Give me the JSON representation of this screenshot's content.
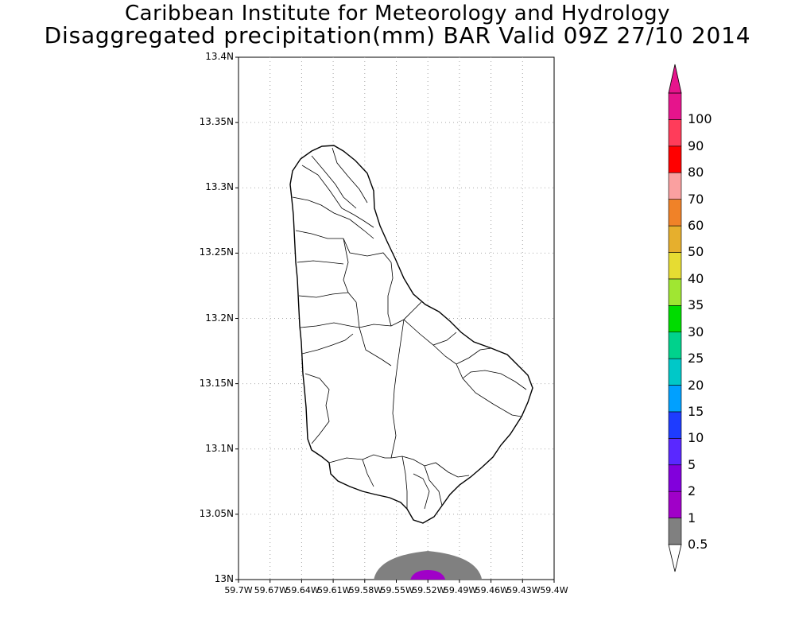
{
  "title": {
    "line1": "Caribbean Institute for Meteorology and Hydrology",
    "line2": "Disaggregated precipitation(mm) BAR Valid 09Z 27/10 2014"
  },
  "map": {
    "region": "Barbados",
    "lat_labels": [
      "13N",
      "13.05N",
      "13.1N",
      "13.15N",
      "13.2N",
      "13.25N",
      "13.3N",
      "13.35N",
      "13.4N"
    ],
    "lon_labels": [
      "59.7W",
      "59.67W",
      "59.64W",
      "59.61W",
      "59.58W",
      "59.55W",
      "59.52W",
      "59.49W",
      "59.46W",
      "59.43W",
      "59.4W"
    ],
    "lat_range": [
      13.0,
      13.4
    ],
    "lon_range": [
      -59.7,
      -59.4
    ],
    "grid": "dotted",
    "precipitation_areas": [
      {
        "class": "0.5-1",
        "color": "#808080",
        "center_lon": -59.52,
        "center_lat": 13.0
      },
      {
        "class": "1-2",
        "color": "#a000c8",
        "center_lon": -59.52,
        "center_lat": 13.0
      }
    ]
  },
  "colorbar": {
    "labels": [
      "0.5",
      "1",
      "2",
      "5",
      "10",
      "15",
      "20",
      "25",
      "30",
      "35",
      "40",
      "50",
      "60",
      "70",
      "80",
      "90",
      "100"
    ],
    "colors": [
      "#808080",
      "#a000c8",
      "#8200dc",
      "#5a28ff",
      "#1e3cff",
      "#00a0ff",
      "#00c8c8",
      "#00d28c",
      "#00dc00",
      "#a0e632",
      "#e6dc32",
      "#e6af2d",
      "#f08228",
      "#faa0a0",
      "#ff0000",
      "#ff3c5a",
      "#e6148c"
    ],
    "under_color": "#ffffff",
    "over_color": "#e6148c"
  }
}
